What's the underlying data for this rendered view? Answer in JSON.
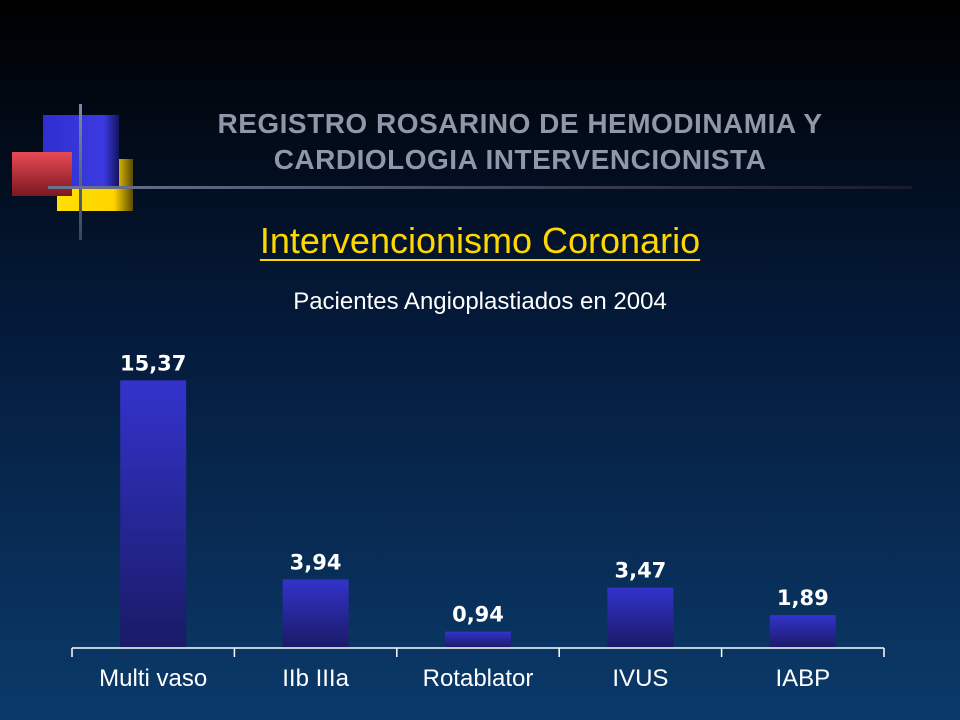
{
  "header": {
    "line1": "REGISTRO ROSARINO DE HEMODINAMIA Y",
    "line2": "CARDIOLOGIA INTERVENCIONISTA"
  },
  "subtitle": "Intervencionismo Coronario",
  "caption": "Pacientes Angioplastiados  en 2004",
  "colors": {
    "title": "#8f97a8",
    "subtitle": "#ffd700",
    "bar_top": "#3333cc",
    "bar_bottom": "#1a1a66",
    "logo_blue": "#2f2fd0",
    "logo_red": "#e84a55",
    "logo_yellow": "#ffd400"
  },
  "chart_data": {
    "type": "bar",
    "categories": [
      "Multi vaso",
      "IIb IIIa",
      "Rotablator",
      "IVUS",
      "IABP"
    ],
    "values": [
      15.37,
      3.94,
      0.94,
      3.47,
      1.89
    ],
    "data_labels": [
      "15,37",
      "3,94",
      "0,94",
      "3,47",
      "1,89"
    ],
    "title": "",
    "xlabel": "",
    "ylabel": "",
    "ylim": [
      0,
      17
    ],
    "grid": false,
    "legend": "none"
  }
}
